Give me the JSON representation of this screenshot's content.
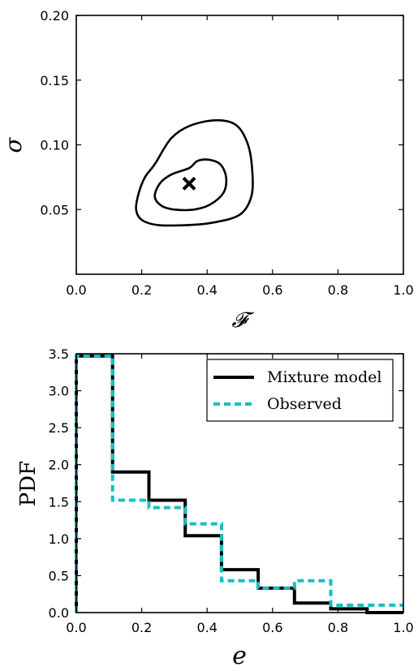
{
  "chart_data": [
    {
      "type": "contour",
      "xlabel": "𝓕",
      "ylabel": "σ",
      "xlim": [
        0.0,
        1.0
      ],
      "ylim": [
        0.0,
        0.2
      ],
      "xticks": [
        "0.0",
        "0.2",
        "0.4",
        "0.6",
        "0.8",
        "1.0"
      ],
      "yticks": [
        "0.05",
        "0.10",
        "0.15",
        "0.20"
      ],
      "marker": {
        "symbol": "x",
        "x": 0.345,
        "y": 0.07
      },
      "contours": [
        {
          "name": "",
          "points": [
            [
              0.345,
              0.082
            ],
            [
              0.37,
              0.0875
            ],
            [
              0.405,
              0.0885
            ],
            [
              0.44,
              0.085
            ],
            [
              0.458,
              0.075
            ],
            [
              0.45,
              0.063
            ],
            [
              0.41,
              0.054
            ],
            [
              0.36,
              0.05
            ],
            [
              0.3,
              0.05
            ],
            [
              0.26,
              0.053
            ],
            [
              0.24,
              0.06
            ],
            [
              0.255,
              0.07
            ],
            [
              0.29,
              0.077
            ],
            [
              0.345,
              0.082
            ]
          ]
        },
        {
          "name": "",
          "points": [
            [
              0.24,
              0.085
            ],
            [
              0.29,
              0.105
            ],
            [
              0.35,
              0.115
            ],
            [
              0.43,
              0.119
            ],
            [
              0.49,
              0.115
            ],
            [
              0.525,
              0.1
            ],
            [
              0.538,
              0.08
            ],
            [
              0.535,
              0.06
            ],
            [
              0.5,
              0.046
            ],
            [
              0.42,
              0.04
            ],
            [
              0.34,
              0.038
            ],
            [
              0.25,
              0.038
            ],
            [
              0.2,
              0.042
            ],
            [
              0.183,
              0.05
            ],
            [
              0.19,
              0.062
            ],
            [
              0.21,
              0.075
            ],
            [
              0.24,
              0.085
            ]
          ]
        }
      ]
    },
    {
      "type": "histogram",
      "xlabel": "e",
      "ylabel": "PDF",
      "xlim": [
        0.0,
        1.0
      ],
      "ylim": [
        0.0,
        3.5
      ],
      "xticks": [
        "0.0",
        "0.2",
        "0.4",
        "0.6",
        "0.8",
        "1.0"
      ],
      "yticks": [
        "0.0",
        "0.5",
        "1.0",
        "1.5",
        "2.0",
        "2.5",
        "3.0",
        "3.5"
      ],
      "bin_edges": [
        0.0,
        0.111,
        0.222,
        0.333,
        0.444,
        0.556,
        0.667,
        0.778,
        0.889,
        1.0
      ],
      "legend_position": "top-right",
      "series": [
        {
          "name": "Mixture model",
          "style": "solid",
          "color": "#000000",
          "values": [
            3.47,
            1.9,
            1.52,
            1.04,
            0.58,
            0.33,
            0.13,
            0.05,
            0.0
          ]
        },
        {
          "name": "Observed",
          "style": "dashed",
          "color": "#18bfbf",
          "values": [
            3.47,
            1.52,
            1.42,
            1.2,
            0.43,
            0.33,
            0.43,
            0.1,
            0.1
          ]
        }
      ]
    }
  ]
}
